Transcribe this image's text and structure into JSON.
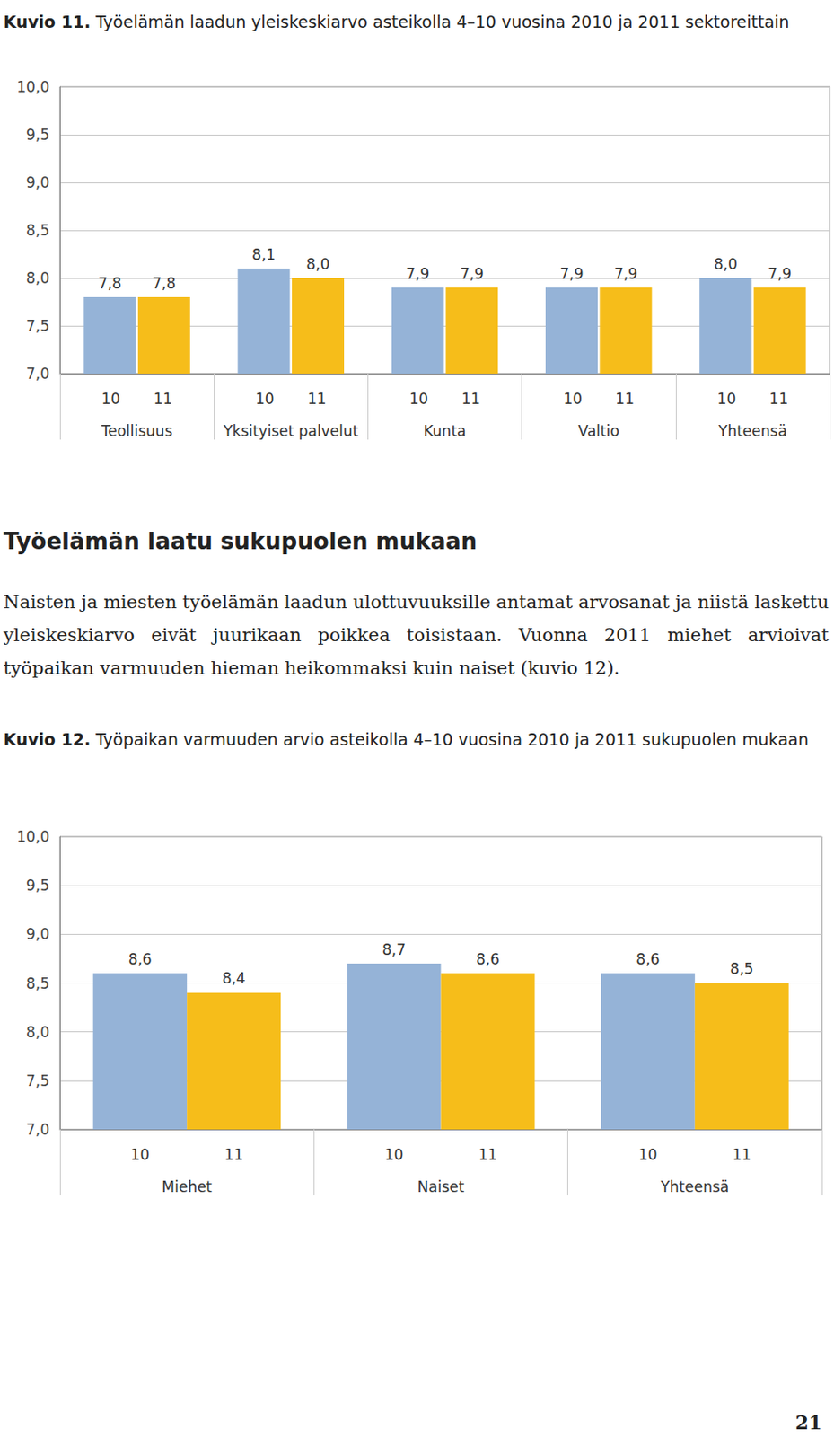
{
  "chart_data": [
    {
      "type": "bar",
      "title": "Kuvio 11. Työelämän laadun yleiskeskiarvo asteikolla 4–10 vuosina 2010 ja 2011 sektoreittain",
      "categories": [
        "Teollisuus",
        "Yksityiset palvelut",
        "Kunta",
        "Valtio",
        "Yhteensä"
      ],
      "series": [
        {
          "name": "10",
          "color": "#95b3d7",
          "values": [
            7.8,
            8.1,
            7.9,
            7.9,
            8.0
          ],
          "value_labels": [
            "7,8",
            "8,1",
            "7,9",
            "7,9",
            "8,0"
          ]
        },
        {
          "name": "11",
          "color": "#f6bd1a",
          "values": [
            7.8,
            8.0,
            7.9,
            7.9,
            7.9
          ],
          "value_labels": [
            "7,8",
            "8,0",
            "7,9",
            "7,9",
            "7,9"
          ]
        }
      ],
      "ylim": [
        7,
        10
      ],
      "yticks": [
        {
          "value": 7,
          "label": "7,0"
        },
        {
          "value": 7.5,
          "label": "7,5"
        },
        {
          "value": 8,
          "label": "8,0"
        },
        {
          "value": 8.5,
          "label": "8,5"
        },
        {
          "value": 9,
          "label": "9,0"
        },
        {
          "value": 9.5,
          "label": "9,5"
        },
        {
          "value": 10,
          "label": "10,0"
        }
      ],
      "grid": true,
      "data_labels": true
    },
    {
      "type": "bar",
      "title": "Kuvio 12. Työpaikan varmuuden arvio asteikolla 4–10 vuosina 2010 ja 2011 sukupuolen mukaan",
      "categories": [
        "Miehet",
        "Naiset",
        "Yhteensä"
      ],
      "series": [
        {
          "name": "10",
          "color": "#95b3d7",
          "values": [
            8.6,
            8.7,
            8.6
          ],
          "value_labels": [
            "8,6",
            "8,7",
            "8,6"
          ]
        },
        {
          "name": "11",
          "color": "#f6bd1a",
          "values": [
            8.4,
            8.6,
            8.5
          ],
          "value_labels": [
            "8,4",
            "8,6",
            "8,5"
          ]
        }
      ],
      "ylim": [
        7,
        10
      ],
      "yticks": [
        {
          "value": 7,
          "label": "7,0"
        },
        {
          "value": 7.5,
          "label": "7,5"
        },
        {
          "value": 8,
          "label": "8,0"
        },
        {
          "value": 8.5,
          "label": "8,5"
        },
        {
          "value": 9,
          "label": "9,0"
        },
        {
          "value": 9.5,
          "label": "9,5"
        },
        {
          "value": 10,
          "label": "10,0"
        }
      ],
      "grid": true,
      "data_labels": true
    }
  ],
  "text": {
    "heading": "Työelämän laatu sukupuolen mukaan",
    "paragraph": "Naisten ja miesten työelämän laadun ulottuvuuksille antamat arvosanat ja niistä laskettu yleiskeskiarvo eivät juurikaan poikkea toisistaan. Vuonna 2011 miehet arvioivat työpaikan varmuuden hieman heikommaksi kuin naiset (kuvio 12).",
    "page_number": "21"
  }
}
